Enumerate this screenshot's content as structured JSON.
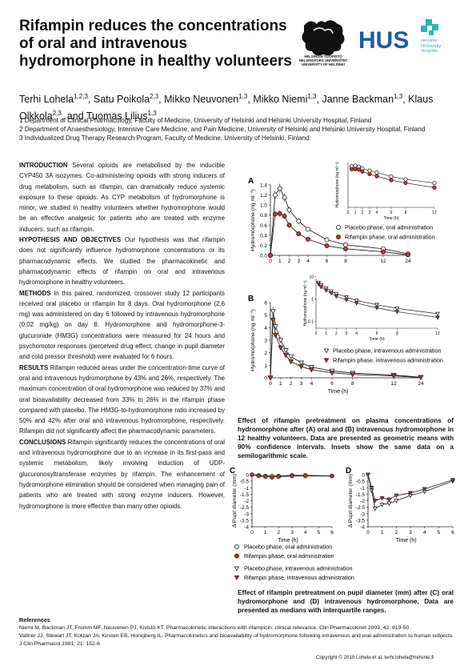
{
  "title": "Rifampin reduces the concentrations of oral and intravenous hydromorphone in healthy volunteers",
  "logos": {
    "hy_lines": [
      "HELSINGIN YLIOPISTO",
      "HELSINGFORS UNIVERSITET",
      "UNIVERSITY OF HELSINKI"
    ],
    "hus_text": "HUS",
    "hus_sub": [
      "Helsinki",
      "University",
      "Hospital"
    ]
  },
  "authors": [
    {
      "name": "Terhi Lohela",
      "sup": "1,2,3"
    },
    {
      "name": "Satu Poikola",
      "sup": "2,3"
    },
    {
      "name": "Mikko Neuvonen",
      "sup": "1,3"
    },
    {
      "name": "Mikko Niemi",
      "sup": "1,3"
    },
    {
      "name": "Janne Backman",
      "sup": "1,3"
    },
    {
      "name": "Klaus Olkkola",
      "sup": "2,3"
    },
    {
      "name": "Tuomas Lilius",
      "sup": "1,3"
    }
  ],
  "affiliations": [
    "1 Department of Clinical Pharmacology, Faculty of Medicine, University of Helsinki and Helsinki University Hospital, Finland",
    "2 Department of Anaesthesiology, Intensive Care Medicine, and Pain Medicine, University of Helsinki and Helsinki University Hospital, Finland",
    "3 Individualized Drug Therapy Research Program, Faculty of Medicine, University of Helsinki, Finland"
  ],
  "sections": [
    {
      "heading": "INTRODUCTION",
      "text": "Several opioids are metabolised by the inducible CYP450 3A isozymes. Co-administering opioids with strong inducers of drug metabolism, such as rifampin, can dramatically reduce systemic exposure to these opioids. As CYP metabolism of hydromorphone is minor, we studied in healthy volunteers whether hydromorphone would be an effective analgesic for patients who are treated with enzyme inducers, such as rifampin."
    },
    {
      "heading": "HYPOTHESIS AND OBJECTIVES",
      "text": "Our hypothesis was that rifampin does not significantly influence hydromorphone concentrations or its pharmacodynamic effects. We studied the pharmacokinetic and pharmacodynamic effects of rifampin on oral and intravenous hydromorphone in healthy volunteers."
    },
    {
      "heading": "METHODS",
      "text": "In this paired, randomized, crossover study 12 participants received oral placebo or rifampin for 8 days. Oral hydromorphone (2.6 mg) was administered on day 6 followed by intravenous hydromorphone (0.02 mg/kg) on day 8. Hydromorphone and hydromorphone-3-glucuronide (HM3G) concentrations were measured for 24 hours and psychomotor responses (perceived drug effect, change in pupil diameter and cold pressor threshold) were evaluated for 6 hours."
    },
    {
      "heading": "RESULTS",
      "text": "Rifampin reduced areas under the concentration-time curve of oral and intravenous hydromorphone by 43% and 26%, respectively. The maximum concentration of oral hydromorphone was reduced by 37% and oral bioavailability decreased from 33% to 26% in the rifampin phase compared with placebo. The HM3G-to-hydromorphone ratio increased by 50% and 42% after oral and intravenous hydromorphone, respectively. Rifampin did not significantly affect the pharmacodynamic parameters."
    },
    {
      "heading": "CONCLUSIONS",
      "text": "Rifampin significantly reduces the concentrations of oral and intravenous hydromorphone due to an increase in its first-pass and systemic metabolism, likely involving induction of UDP-glucuronosyltransferase enzymes by rifampin. The enhancement of hydromorphone elimination should be considered when managing pain of patients who are treated with strong enzyme inducers. However, hydromorphone is more effective than many other opioids."
    }
  ],
  "caption_ab": "Effect of rifampin pretreatment on plasma concentrations of hydromorphone after (A) oral and (B) intravenous hydromorphone in 12 healthy volunteers. Data are presented as geometric means with 90% confidence intervals. Insets show the same data on a semilogarithmic scale.",
  "caption_cd": "Effect of rifampin pretreatment on pupil diameter (mm) after (C) oral hydromorphone and (D) intravenous hydromorphone, Data are presented as medians with interquartile ranges.",
  "references": {
    "heading": "References",
    "items": [
      "Niemi M, Backman JT, Fromm MF, Neuvonen PJ, Kivistö KT. Pharmacokinetic interactions with rifampicin: clinical relevance. Clin Pharmacokinet 2003; 42: 819-50",
      "Vallner JJ, Stewart JT, Kotzan JA, Kirsten EB, Honigberg IL. Pharmacokinetics and bioavailability of hydromorphone following intravenous and oral administration to human subjects. J Clin Pharmacol 1981; 21: 152-6"
    ]
  },
  "copyright": "Copyright © 2019 Lohela et al, terhi.lohela@helsinki.fi",
  "chart_data": [
    {
      "id": "A",
      "type": "line",
      "panel_label": "A",
      "xlabel": "Time (h)",
      "ylabel": "Hydromorphone (ng ml⁻¹)",
      "x": [
        0,
        0.5,
        1,
        1.5,
        2,
        3,
        4,
        6,
        8,
        12,
        24
      ],
      "xticks": [
        "0",
        "1",
        "2",
        "3",
        "4",
        "6",
        "8",
        "12",
        "24"
      ],
      "yticks": [
        "0.0",
        "0.2",
        "0.4",
        "0.6",
        "0.8",
        "1.0",
        "1.2",
        "1.4"
      ],
      "ylim": [
        0,
        1.4
      ],
      "series": [
        {
          "name": "Placebo phase, oral administration",
          "marker": "open-circle",
          "values": [
            0,
            1.2,
            1.33,
            1.15,
            0.9,
            0.68,
            0.52,
            0.31,
            0.21,
            0.13,
            0.03
          ]
        },
        {
          "name": "Rifampin phase, oral administration",
          "marker": "filled-circle",
          "values": [
            0,
            0.82,
            0.83,
            0.78,
            0.6,
            0.43,
            0.32,
            0.19,
            0.13,
            0.07,
            0.01
          ]
        }
      ],
      "inset": {
        "ylabel": "Hydromorphone (ng ml⁻¹)",
        "xlabel": "Time (h)",
        "xticks": [
          "0",
          "1",
          "2",
          "3",
          "4",
          "6",
          "8",
          "12"
        ],
        "scale": "log"
      }
    },
    {
      "id": "B",
      "type": "line",
      "panel_label": "B",
      "xlabel": "Time (h)",
      "ylabel": "Hydromorphone (ng ml⁻¹)",
      "x": [
        0,
        0.25,
        0.5,
        1,
        1.5,
        2,
        3,
        4,
        6,
        8,
        12,
        24
      ],
      "xticks": [
        "0",
        "1",
        "2",
        "3",
        "4",
        "6",
        "8",
        "12",
        "24"
      ],
      "yticks": [
        "0",
        "1",
        "2",
        "3",
        "4",
        "5",
        "6"
      ],
      "ylim": [
        0,
        6
      ],
      "series": [
        {
          "name": "Placebo phase, intravenous administration",
          "marker": "open-triangle-down",
          "values": [
            0,
            5.3,
            4.1,
            3.0,
            2.2,
            1.7,
            1.2,
            0.85,
            0.55,
            0.38,
            0.22,
            0.05
          ]
        },
        {
          "name": "Rifampin phase, intravenous administration",
          "marker": "filled-triangle-down",
          "values": [
            0,
            4.6,
            3.4,
            2.4,
            1.8,
            1.3,
            0.9,
            0.65,
            0.4,
            0.27,
            0.15,
            0.03
          ]
        }
      ],
      "inset": {
        "ylabel": "Hydromorphone (ng ml⁻¹)",
        "xlabel": "Time (h)",
        "xticks": [
          "0",
          "1",
          "2",
          "3",
          "4",
          "6",
          "8",
          "12"
        ],
        "yticks": [
          "10",
          "1",
          "0.1"
        ],
        "scale": "log"
      }
    },
    {
      "id": "C",
      "type": "line",
      "panel_label": "C",
      "xlabel": "Time (h)",
      "ylabel": "Δ Pupil diameter (mm)",
      "x": [
        0,
        0.5,
        1,
        1.5,
        2,
        3,
        4,
        6
      ],
      "xticks": [
        "0",
        "1",
        "2",
        "3",
        "4",
        "5",
        "6"
      ],
      "yticks": [
        "0",
        "-0.5",
        "-1",
        "-1.5",
        "-2",
        "-2.5",
        "-3",
        "-3.5",
        "-4"
      ],
      "ylim": [
        -4,
        0
      ],
      "series": [
        {
          "name": "Placebo phase, oral administration",
          "marker": "open-circle",
          "values": [
            0,
            -0.05,
            -0.1,
            -0.1,
            -0.1,
            -0.05,
            -0.05,
            -0.1
          ]
        },
        {
          "name": "Rifampin phase, oral administration",
          "marker": "filled-circle",
          "values": [
            0,
            -0.1,
            -0.15,
            -0.2,
            -0.15,
            -0.1,
            -0.1,
            -0.1
          ]
        }
      ]
    },
    {
      "id": "D",
      "type": "line",
      "panel_label": "D",
      "xlabel": "Time (h)",
      "ylabel": "Δ Pupil diameter (mm)",
      "x": [
        0,
        0.25,
        0.5,
        1,
        1.5,
        2,
        3,
        4,
        6
      ],
      "xticks": [
        "0",
        "1",
        "2",
        "3",
        "4",
        "5",
        "6"
      ],
      "yticks": [
        "0",
        "-0.5",
        "-1",
        "-1.5",
        "-2",
        "-2.5",
        "-3",
        "-3.5",
        "-4"
      ],
      "ylim": [
        -4,
        0
      ],
      "series": [
        {
          "name": "Placebo phase, intravenous administration",
          "marker": "open-triangle-down",
          "values": [
            0,
            -1.2,
            -2.6,
            -2.3,
            -2.2,
            -2.0,
            -1.6,
            -1.3,
            -0.5
          ]
        },
        {
          "name": "Rifampin phase, intravenous administration",
          "marker": "filled-triangle-down",
          "values": [
            0,
            -1.0,
            -2.0,
            -1.8,
            -1.9,
            -1.6,
            -1.4,
            -1.1,
            -0.4
          ]
        }
      ]
    }
  ],
  "legend_cd": [
    {
      "name": "Placebo phase, oral administration",
      "marker": "open-circle"
    },
    {
      "name": "Rifampin phase, oral administration",
      "marker": "filled-circle"
    },
    {
      "name": "Placebo phase, intravenous administration",
      "marker": "open-triangle-down"
    },
    {
      "name": "Rifampin phase, intravenous administration",
      "marker": "filled-triangle-down"
    }
  ],
  "colors": {
    "rifampin": "#c0392b",
    "placebo": "#ffffff",
    "line": "#222222",
    "hus_blue": "#1d5aa6",
    "hus_teal": "#2ab3b5"
  }
}
